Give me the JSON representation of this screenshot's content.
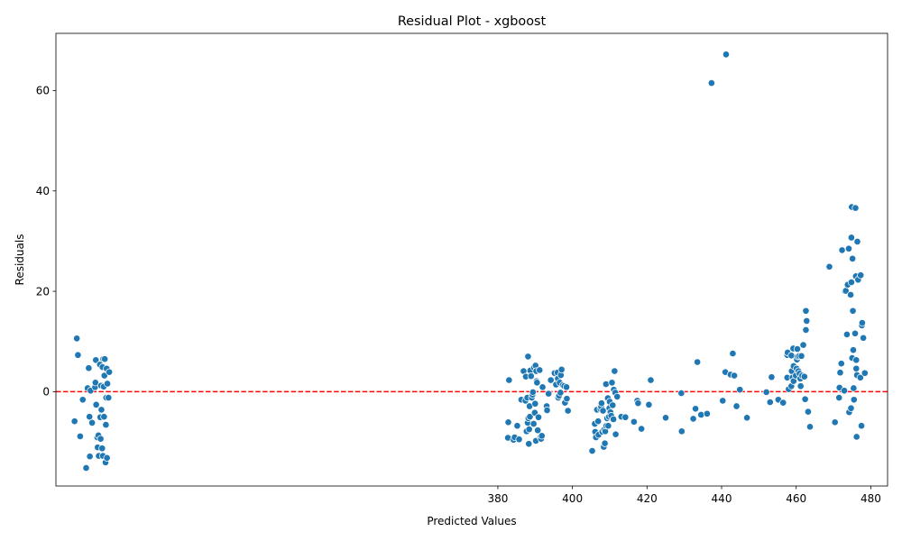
{
  "chart_data": {
    "type": "scatter",
    "title": "Residual Plot - xgboost",
    "xlabel": "Predicted Values",
    "ylabel": "Residuals",
    "xlim": [
      261.5,
      484.5
    ],
    "ylim": [
      -18.8,
      71.4
    ],
    "xticks": [
      380,
      400,
      420,
      440,
      460,
      480
    ],
    "yticks": [
      0,
      20,
      40,
      60
    ],
    "grid": false,
    "marker_color": "#1f77b4",
    "reference_line": {
      "y": 0,
      "color": "#ff0000",
      "style": "dashed"
    },
    "points": [
      [
        266.5,
        -5.9
      ],
      [
        267.1,
        10.6
      ],
      [
        267.4,
        7.3
      ],
      [
        268.0,
        -8.9
      ],
      [
        268.7,
        -1.6
      ],
      [
        269.6,
        -15.2
      ],
      [
        270.0,
        0.7
      ],
      [
        270.3,
        4.7
      ],
      [
        270.5,
        -5.0
      ],
      [
        270.6,
        -12.9
      ],
      [
        270.8,
        0.2
      ],
      [
        271.2,
        -6.2
      ],
      [
        272.0,
        0.9
      ],
      [
        272.1,
        1.8
      ],
      [
        272.2,
        6.3
      ],
      [
        272.3,
        -2.6
      ],
      [
        272.6,
        -9.1
      ],
      [
        272.7,
        -11.1
      ],
      [
        272.9,
        -8.7
      ],
      [
        273.0,
        -12.8
      ],
      [
        273.3,
        5.4
      ],
      [
        273.4,
        -5.1
      ],
      [
        273.5,
        -9.4
      ],
      [
        273.6,
        1.2
      ],
      [
        273.7,
        -3.6
      ],
      [
        273.9,
        -11.3
      ],
      [
        274.0,
        4.9
      ],
      [
        274.1,
        -12.8
      ],
      [
        274.2,
        6.5
      ],
      [
        274.3,
        1.0
      ],
      [
        274.4,
        -5.0
      ],
      [
        274.5,
        3.2
      ],
      [
        274.6,
        6.5
      ],
      [
        274.8,
        -14.1
      ],
      [
        274.9,
        -6.6
      ],
      [
        275.0,
        -1.2
      ],
      [
        275.1,
        4.6
      ],
      [
        275.2,
        -13.2
      ],
      [
        275.3,
        1.6
      ],
      [
        275.6,
        -1.2
      ],
      [
        275.8,
        3.9
      ],
      [
        382.7,
        -9.2
      ],
      [
        382.8,
        -6.1
      ],
      [
        383.0,
        2.3
      ],
      [
        384.2,
        -9.6
      ],
      [
        384.5,
        -9.1
      ],
      [
        385.2,
        -6.8
      ],
      [
        385.7,
        -9.5
      ],
      [
        386.3,
        -1.6
      ],
      [
        386.9,
        4.1
      ],
      [
        387.4,
        -1.8
      ],
      [
        387.5,
        3.0
      ],
      [
        387.7,
        -7.9
      ],
      [
        387.9,
        -1.2
      ],
      [
        388.0,
        -6.2
      ],
      [
        388.1,
        7.0
      ],
      [
        388.2,
        -5.3
      ],
      [
        388.3,
        -10.4
      ],
      [
        388.4,
        -7.5
      ],
      [
        388.5,
        -2.9
      ],
      [
        388.6,
        -5.0
      ],
      [
        388.7,
        4.2
      ],
      [
        388.9,
        3.1
      ],
      [
        389.1,
        -1.2
      ],
      [
        389.3,
        -0.6
      ],
      [
        389.4,
        -0.1
      ],
      [
        389.6,
        -6.4
      ],
      [
        389.7,
        4.8
      ],
      [
        389.9,
        -4.2
      ],
      [
        390.0,
        -2.4
      ],
      [
        390.1,
        5.2
      ],
      [
        390.2,
        -9.8
      ],
      [
        390.3,
        4.1
      ],
      [
        390.4,
        2.1
      ],
      [
        390.5,
        1.8
      ],
      [
        390.7,
        -7.7
      ],
      [
        390.9,
        -5.1
      ],
      [
        391.2,
        4.3
      ],
      [
        391.4,
        -9.1
      ],
      [
        391.6,
        -9.4
      ],
      [
        391.8,
        -8.8
      ],
      [
        392.0,
        0.9
      ],
      [
        393.1,
        -2.9
      ],
      [
        393.2,
        -3.7
      ],
      [
        393.6,
        -0.4
      ],
      [
        394.2,
        2.3
      ],
      [
        395.2,
        3.7
      ],
      [
        395.6,
        1.4
      ],
      [
        396.0,
        3.8
      ],
      [
        396.1,
        2.6
      ],
      [
        396.2,
        -1.2
      ],
      [
        396.4,
        -0.8
      ],
      [
        396.6,
        1.8
      ],
      [
        396.8,
        -0.2
      ],
      [
        396.9,
        3.3
      ],
      [
        397.1,
        4.4
      ],
      [
        397.4,
        1.3
      ],
      [
        397.8,
        1.1
      ],
      [
        398.0,
        -2.2
      ],
      [
        398.4,
        0.9
      ],
      [
        398.5,
        -1.4
      ],
      [
        398.8,
        -3.8
      ],
      [
        405.3,
        -11.8
      ],
      [
        406.0,
        -6.4
      ],
      [
        406.1,
        -8.0
      ],
      [
        406.3,
        -9.1
      ],
      [
        406.6,
        -3.6
      ],
      [
        406.9,
        -5.9
      ],
      [
        407.0,
        -8.6
      ],
      [
        407.5,
        -3.4
      ],
      [
        407.7,
        -3.0
      ],
      [
        407.8,
        -2.3
      ],
      [
        408.0,
        -8.0
      ],
      [
        408.2,
        -3.8
      ],
      [
        408.4,
        -11.0
      ],
      [
        408.5,
        -7.6
      ],
      [
        408.7,
        -10.3
      ],
      [
        408.8,
        -7.9
      ],
      [
        409.0,
        1.5
      ],
      [
        409.1,
        -6.8
      ],
      [
        409.3,
        -5.3
      ],
      [
        409.5,
        -1.3
      ],
      [
        409.6,
        -6.8
      ],
      [
        409.8,
        -5.0
      ],
      [
        409.9,
        -3.3
      ],
      [
        410.0,
        -2.0
      ],
      [
        410.2,
        -4.1
      ],
      [
        410.4,
        -4.8
      ],
      [
        410.6,
        1.8
      ],
      [
        410.8,
        -2.7
      ],
      [
        411.0,
        -5.5
      ],
      [
        411.1,
        0.4
      ],
      [
        411.3,
        4.1
      ],
      [
        411.5,
        -0.2
      ],
      [
        411.6,
        -8.5
      ],
      [
        412.0,
        -1.0
      ],
      [
        413.1,
        -5.0
      ],
      [
        414.2,
        -5.1
      ],
      [
        416.5,
        -6.0
      ],
      [
        417.4,
        -1.8
      ],
      [
        417.6,
        -2.3
      ],
      [
        418.5,
        -7.4
      ],
      [
        420.5,
        -2.6
      ],
      [
        421.0,
        2.3
      ],
      [
        425.0,
        -5.2
      ],
      [
        429.2,
        -0.3
      ],
      [
        429.3,
        -7.9
      ],
      [
        432.4,
        -5.4
      ],
      [
        433.0,
        -3.4
      ],
      [
        433.5,
        5.9
      ],
      [
        434.5,
        -4.6
      ],
      [
        436.1,
        -4.4
      ],
      [
        437.3,
        61.5
      ],
      [
        440.3,
        -1.8
      ],
      [
        441.0,
        3.9
      ],
      [
        441.2,
        67.2
      ],
      [
        442.4,
        3.4
      ],
      [
        443.0,
        7.6
      ],
      [
        443.4,
        3.2
      ],
      [
        444.0,
        -2.9
      ],
      [
        444.9,
        0.4
      ],
      [
        446.8,
        -5.2
      ],
      [
        452.0,
        -0.1
      ],
      [
        453.0,
        -2.1
      ],
      [
        453.4,
        2.9
      ],
      [
        455.2,
        -1.6
      ],
      [
        456.5,
        -2.2
      ],
      [
        457.6,
        2.8
      ],
      [
        457.6,
        7.3
      ],
      [
        457.7,
        7.8
      ],
      [
        458.0,
        0.5
      ],
      [
        458.7,
        1.1
      ],
      [
        458.7,
        7.2
      ],
      [
        458.8,
        4.1
      ],
      [
        459.0,
        2.8
      ],
      [
        459.2,
        8.6
      ],
      [
        459.3,
        2.1
      ],
      [
        459.3,
        5.1
      ],
      [
        459.9,
        3.2
      ],
      [
        460.1,
        4.6
      ],
      [
        460.2,
        6.4
      ],
      [
        460.3,
        8.5
      ],
      [
        460.4,
        7.0
      ],
      [
        460.6,
        4.1
      ],
      [
        460.8,
        7.1
      ],
      [
        460.9,
        3.6
      ],
      [
        461.1,
        2.6
      ],
      [
        461.2,
        1.1
      ],
      [
        461.4,
        7.1
      ],
      [
        461.6,
        3.2
      ],
      [
        461.9,
        9.3
      ],
      [
        462.2,
        3.0
      ],
      [
        462.4,
        -1.5
      ],
      [
        462.6,
        12.3
      ],
      [
        462.6,
        16.1
      ],
      [
        462.8,
        14.1
      ],
      [
        463.2,
        -4.0
      ],
      [
        463.7,
        -7.0
      ],
      [
        468.9,
        24.9
      ],
      [
        470.4,
        -6.1
      ],
      [
        471.5,
        -1.2
      ],
      [
        471.6,
        0.8
      ],
      [
        471.8,
        3.8
      ],
      [
        472.1,
        5.6
      ],
      [
        472.3,
        28.2
      ],
      [
        472.9,
        0.2
      ],
      [
        473.1,
        20.0
      ],
      [
        473.3,
        20.1
      ],
      [
        473.6,
        11.4
      ],
      [
        473.8,
        21.3
      ],
      [
        474.1,
        28.5
      ],
      [
        474.2,
        -4.1
      ],
      [
        474.6,
        19.3
      ],
      [
        474.7,
        -3.3
      ],
      [
        474.8,
        30.7
      ],
      [
        474.8,
        21.8
      ],
      [
        474.9,
        36.8
      ],
      [
        475.0,
        6.7
      ],
      [
        475.1,
        26.5
      ],
      [
        475.2,
        16.1
      ],
      [
        475.3,
        8.3
      ],
      [
        475.4,
        0.7
      ],
      [
        475.5,
        -1.6
      ],
      [
        475.8,
        11.6
      ],
      [
        475.9,
        36.6
      ],
      [
        476.0,
        23.0
      ],
      [
        476.1,
        6.3
      ],
      [
        476.1,
        4.6
      ],
      [
        476.2,
        -9.0
      ],
      [
        476.3,
        3.3
      ],
      [
        476.4,
        29.9
      ],
      [
        476.6,
        22.3
      ],
      [
        477.2,
        2.8
      ],
      [
        477.3,
        23.2
      ],
      [
        477.5,
        -6.8
      ],
      [
        477.6,
        13.2
      ],
      [
        477.7,
        13.7
      ],
      [
        478.0,
        10.7
      ],
      [
        478.4,
        3.7
      ]
    ]
  }
}
